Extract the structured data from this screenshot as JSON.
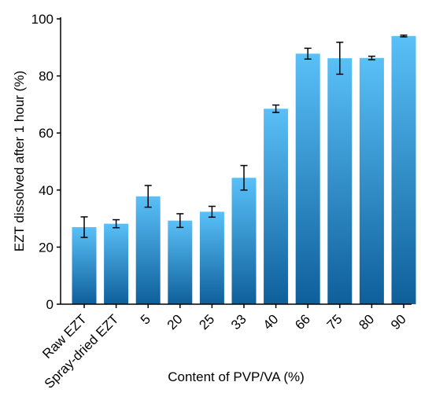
{
  "chart_data": {
    "type": "bar",
    "title": "",
    "xlabel": "Content of PVP/VA (%)",
    "ylabel": "EZT dissolved after 1 hour (%)",
    "ylim": [
      0,
      100
    ],
    "yticks": [
      0,
      20,
      40,
      60,
      80,
      100
    ],
    "yticks_labels": [
      "0",
      "20",
      "40",
      "60",
      "80",
      "100"
    ],
    "grid": false,
    "legend": "none",
    "categories": [
      "Raw EZT",
      "Spray-dried EZT",
      "5",
      "20",
      "25",
      "33",
      "40",
      "66",
      "75",
      "80",
      "90"
    ],
    "values": [
      27.0,
      28.2,
      37.8,
      29.3,
      32.4,
      44.3,
      68.5,
      87.8,
      86.2,
      86.3,
      94.0
    ],
    "error": [
      3.6,
      1.4,
      3.8,
      2.4,
      1.9,
      4.3,
      1.3,
      1.9,
      5.6,
      0.6,
      0.3
    ],
    "bar_colors": {
      "top": "#5ac0f8",
      "bottom": "#0e5f9a"
    },
    "axis_color": "#000000"
  }
}
